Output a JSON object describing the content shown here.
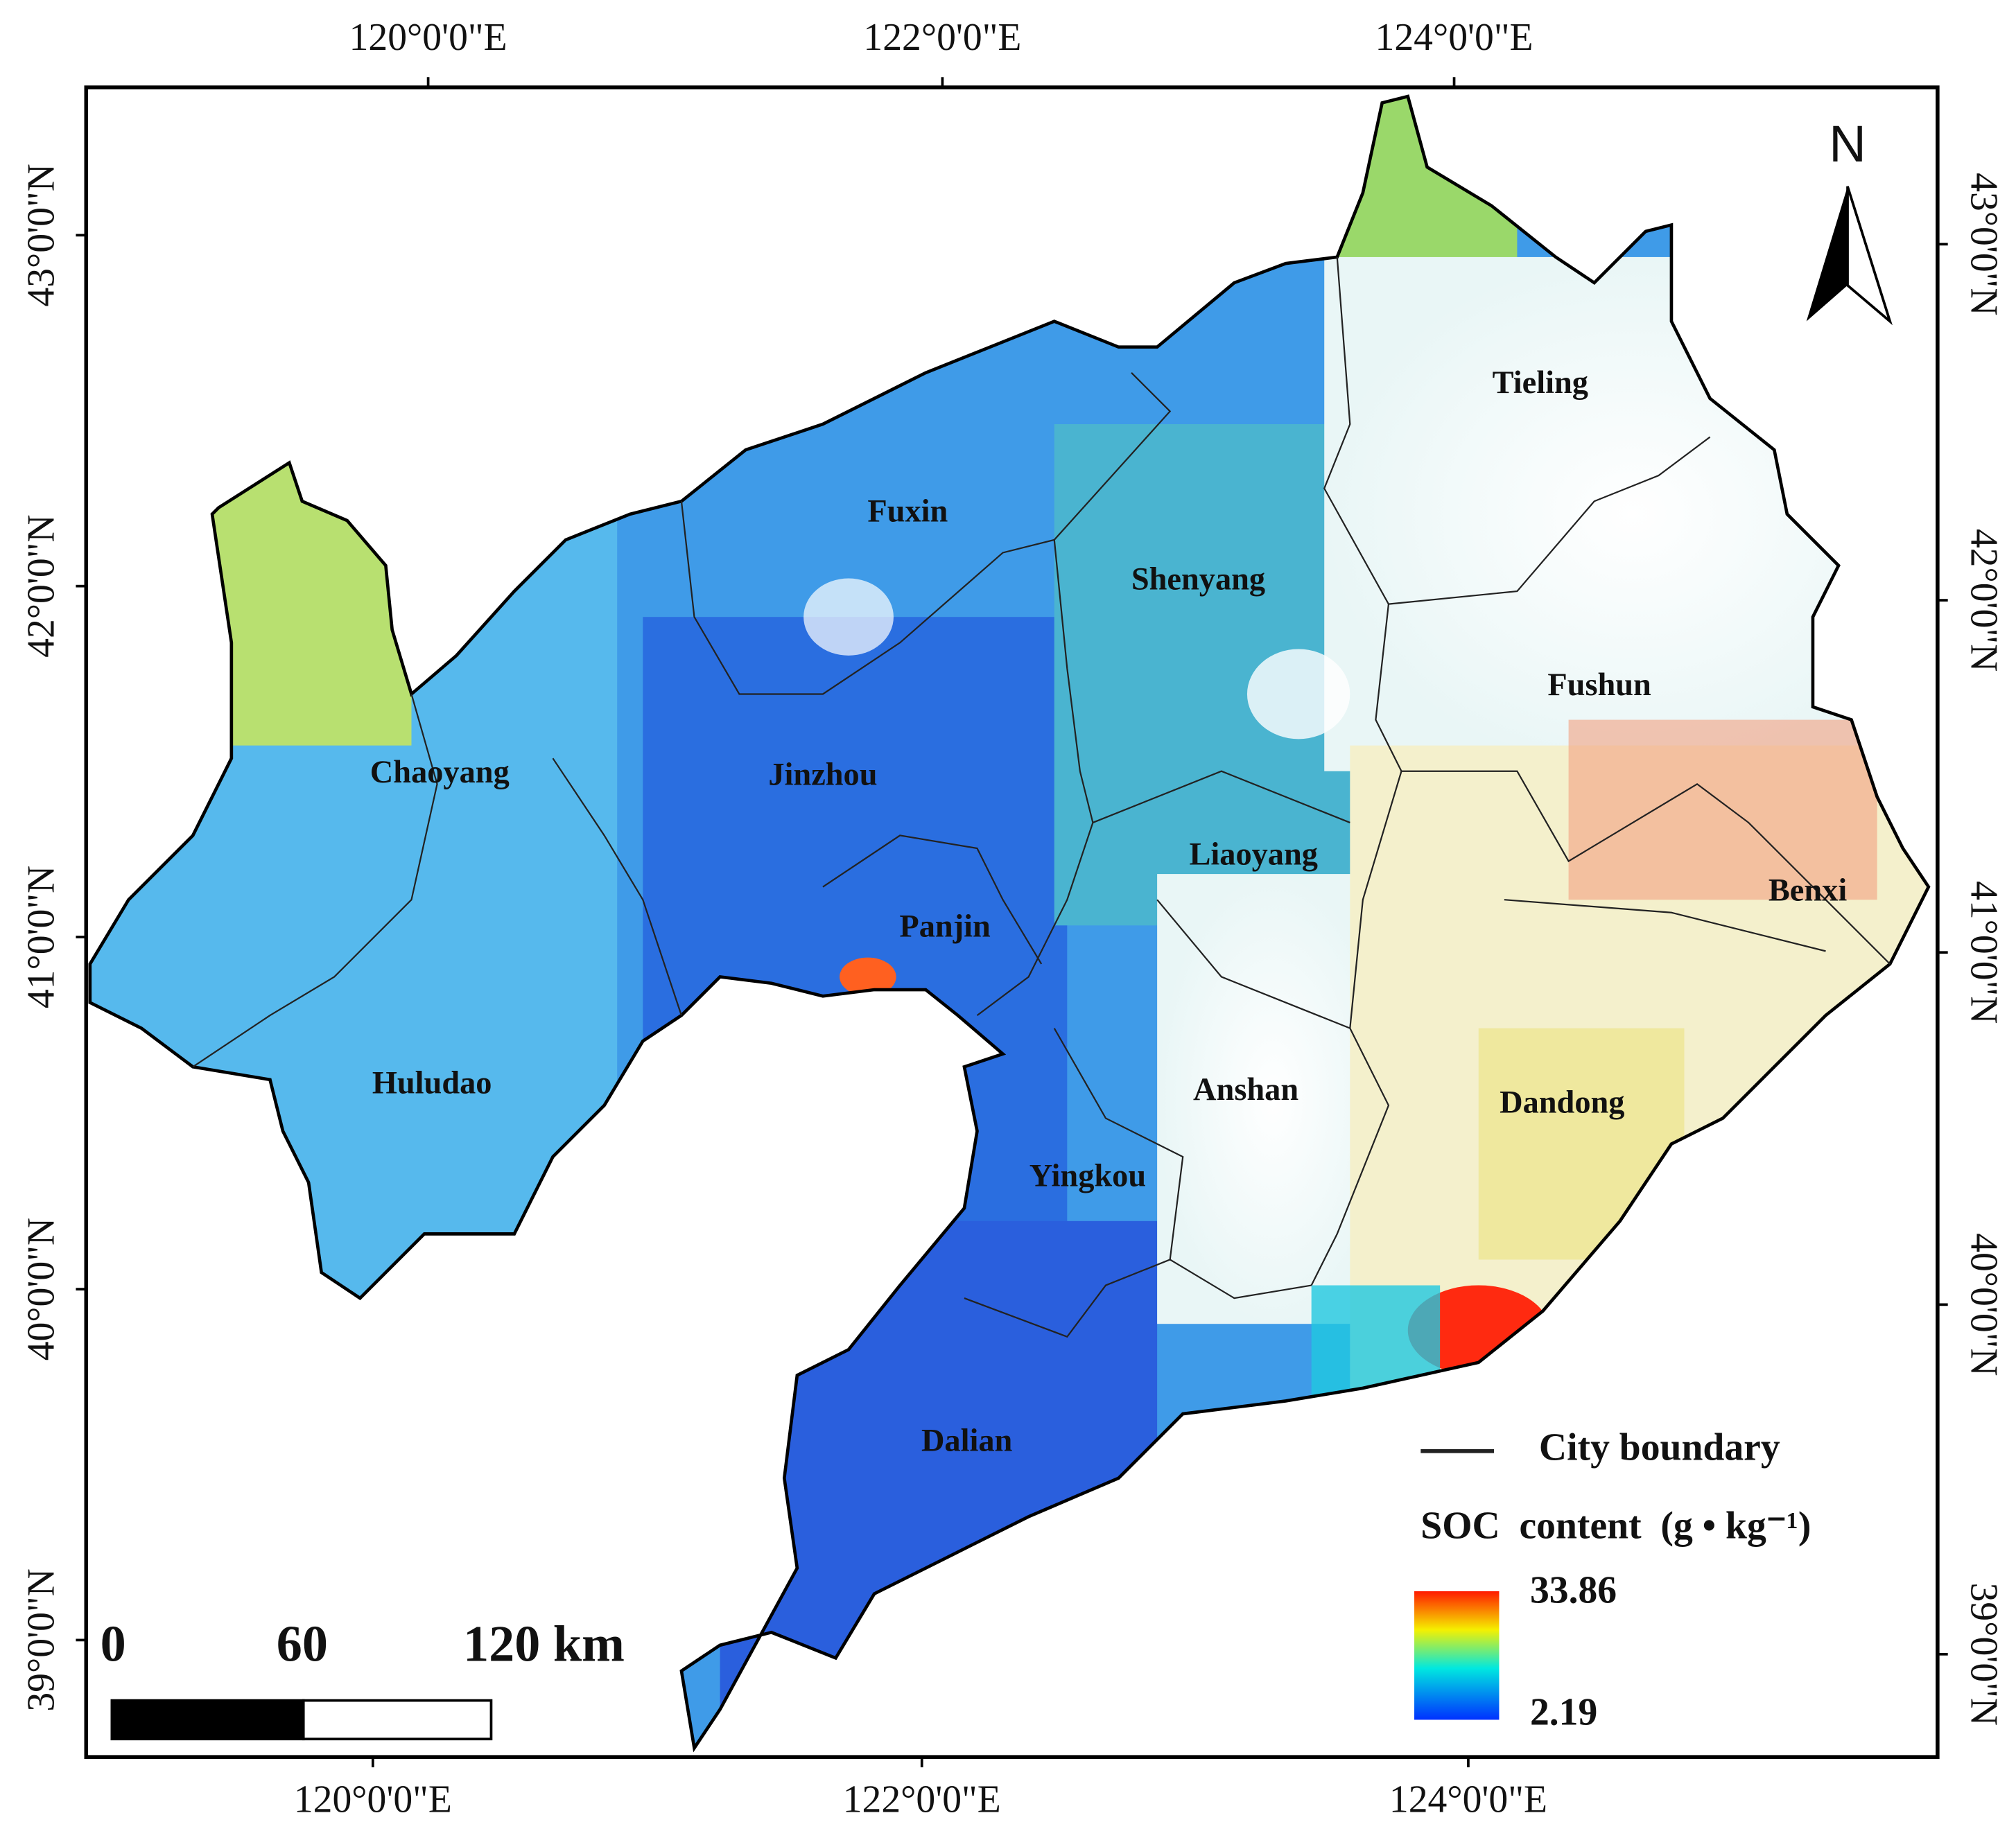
{
  "map": {
    "graticule": {
      "top": [
        "120°0'0\"E",
        "122°0'0\"E",
        "124°0'0\"E"
      ],
      "bottom": [
        "120°0'0\"E",
        "122°0'0\"E",
        "124°0'0\"E"
      ],
      "left": [
        "43°0'0\"N",
        "42°0'0\"N",
        "41°0'0\"N",
        "40°0'0\"N",
        "39°0'0\"N"
      ],
      "right": [
        "43°0'0\"N",
        "42°0'0\"N",
        "41°0'0\"N",
        "40°0'0\"N",
        "39°0'0\"N"
      ]
    },
    "north_arrow": "N",
    "cities": [
      "Tieling",
      "Fuxin",
      "Shenyang",
      "Fushun",
      "Chaoyang",
      "Jinzhou",
      "Liaoyang",
      "Benxi",
      "Panjin",
      "Huludao",
      "Anshan",
      "Dandong",
      "Yingkou",
      "Dalian"
    ],
    "scale_bar": {
      "labels": [
        "0",
        "60",
        "120 km"
      ]
    },
    "legend": {
      "boundary": "City boundary",
      "title": "SOC  content  (g • kg⁻¹)",
      "max": 33.86,
      "min": 2.19
    }
  }
}
